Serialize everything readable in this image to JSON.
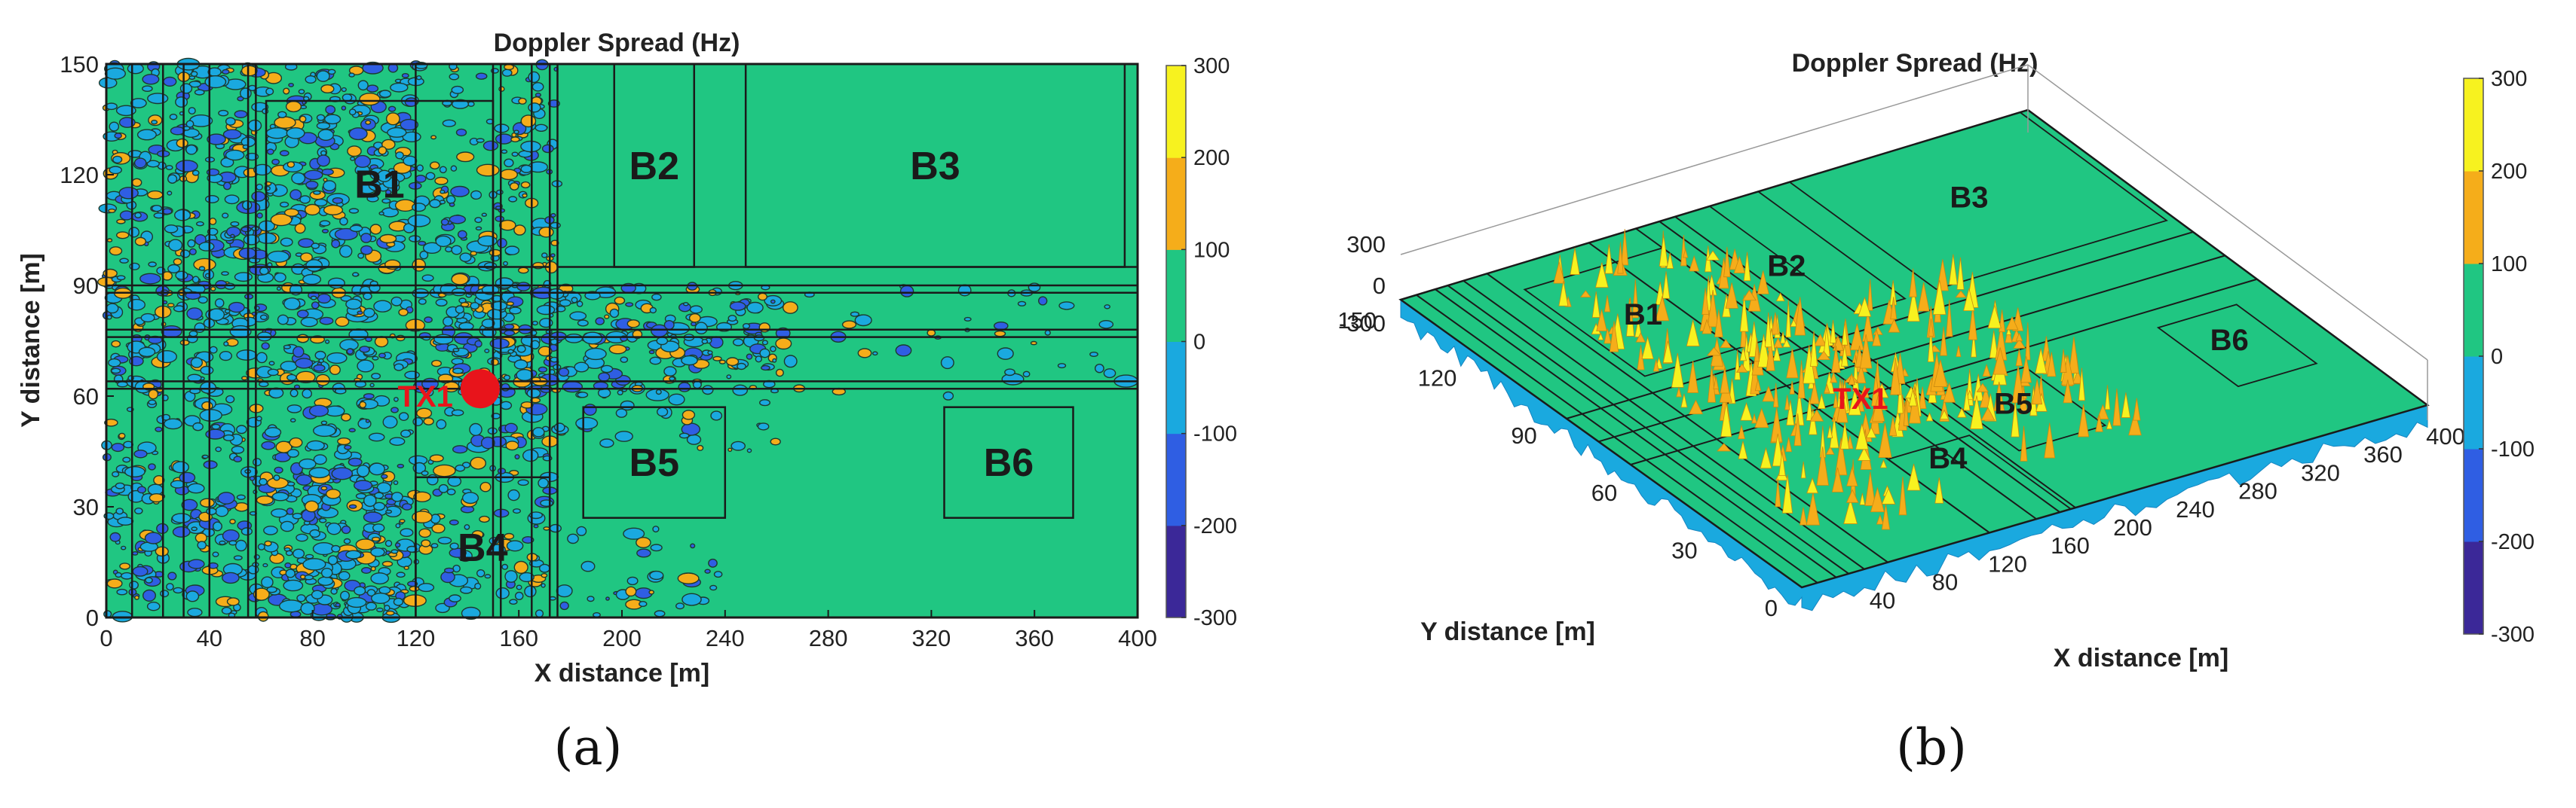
{
  "colors": {
    "bg_field": "#20c682",
    "contour": "#1d3a2e",
    "wall": "#1a1a1a",
    "tx": "#e8141b",
    "colorbar": [
      "#3b2898",
      "#2f5ee3",
      "#1aa9df",
      "#20c682",
      "#f5ad1a",
      "#f7f21f"
    ]
  },
  "chart_data": [
    {
      "panel": "a",
      "type": "heatmap",
      "title": "Doppler Spread (Hz)",
      "xlabel": "X distance [m]",
      "ylabel": "Y distance [m]",
      "xlim": [
        0,
        400
      ],
      "ylim": [
        0,
        150
      ],
      "x_ticks": [
        "0",
        "40",
        "80",
        "120",
        "160",
        "200",
        "240",
        "280",
        "320",
        "360",
        "400"
      ],
      "y_ticks": [
        "0",
        "30",
        "60",
        "90",
        "120",
        "150"
      ],
      "colorbar": {
        "min": -300,
        "max": 300,
        "ticks": [
          "300",
          "200",
          "100",
          "0",
          "-100",
          "-200",
          "-300"
        ]
      },
      "buildings": [
        {
          "label": "B1",
          "x": [
            62,
            150
          ],
          "y": [
            95,
            140
          ]
        },
        {
          "label": "B2",
          "x": [
            197,
            228
          ],
          "y": [
            95,
            150
          ]
        },
        {
          "label": "B3",
          "x": [
            248,
            395
          ],
          "y": [
            95,
            150
          ]
        },
        {
          "label": "B4",
          "x": [
            120,
            172
          ],
          "y": [
            0,
            38
          ]
        },
        {
          "label": "B5",
          "x": [
            185,
            240
          ],
          "y": [
            27,
            57
          ]
        },
        {
          "label": "B6",
          "x": [
            325,
            375
          ],
          "y": [
            27,
            57
          ]
        }
      ],
      "transmitter": {
        "label": "TX1",
        "x": 145,
        "y": 62
      }
    },
    {
      "panel": "b",
      "type": "surface",
      "title": "Doppler Spread (Hz)",
      "xlabel": "X distance [m]",
      "ylabel": "Y distance [m]",
      "x_ticks": [
        "40",
        "80",
        "120",
        "160",
        "200",
        "240",
        "280",
        "320",
        "360",
        "400"
      ],
      "y_ticks": [
        "0",
        "30",
        "60",
        "90",
        "120",
        "150"
      ],
      "z_ticks": [
        "300",
        "0",
        "-300"
      ],
      "colorbar": {
        "min": -300,
        "max": 300,
        "ticks": [
          "300",
          "200",
          "100",
          "0",
          "-100",
          "-200",
          "-300"
        ]
      },
      "building_labels": [
        "B1",
        "B2",
        "B3",
        "B4",
        "B5",
        "B6"
      ],
      "transmitter": {
        "label": "TX1"
      }
    }
  ],
  "captions": {
    "a": "(a)",
    "b": "(b)"
  }
}
